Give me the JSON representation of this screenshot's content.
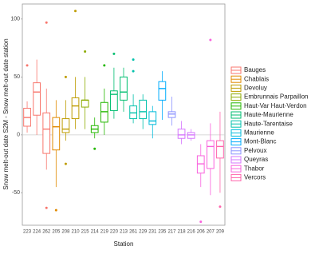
{
  "chart_data": {
    "type": "box",
    "y_label": "Snow melt-out date S2M - Snow melt-out date station",
    "x_label": "Station",
    "ylim": [
      -78,
      113
    ],
    "yticks": [
      -50,
      0,
      50,
      100
    ],
    "reference_line": 0,
    "legend": [
      {
        "name": "Bauges",
        "color": "#F8766D"
      },
      {
        "name": "Chablais",
        "color": "#E18A00"
      },
      {
        "name": "Devoluy",
        "color": "#BE9C00"
      },
      {
        "name": "Embrunnais Parpaillon",
        "color": "#8CAB00"
      },
      {
        "name": "Haut-Var Haut-Verdon",
        "color": "#24B700"
      },
      {
        "name": "Haute-Maurienne",
        "color": "#00BE70"
      },
      {
        "name": "Haute-Tarentaise",
        "color": "#00C1AB"
      },
      {
        "name": "Maurienne",
        "color": "#00BBDA"
      },
      {
        "name": "Mont-Blanc",
        "color": "#00ACFC"
      },
      {
        "name": "Pelvoux",
        "color": "#8B93FF"
      },
      {
        "name": "Queyras",
        "color": "#D575FE"
      },
      {
        "name": "Thabor",
        "color": "#F962DD"
      },
      {
        "name": "Vercors",
        "color": "#FF65AC"
      }
    ],
    "categories": [
      "223",
      "224",
      "262",
      "205",
      "208",
      "210",
      "215",
      "214",
      "219",
      "220",
      "213",
      "261",
      "229",
      "231",
      "235",
      "217",
      "218",
      "216",
      "206",
      "207",
      "209"
    ],
    "colors": [
      "#F8766D",
      "#F8766D",
      "#F8766D",
      "#E18A00",
      "#BE9C00",
      "#BE9C00",
      "#8CAB00",
      "#24B700",
      "#24B700",
      "#00BE70",
      "#00BE70",
      "#00C1AB",
      "#00C1AB",
      "#00BBDA",
      "#00ACFC",
      "#8B93FF",
      "#D575FE",
      "#D575FE",
      "#F962DD",
      "#F962DD",
      "#FF65AC"
    ],
    "boxes": [
      {
        "min": 2,
        "q1": 7.5,
        "median": 15,
        "q3": 23,
        "max": 29,
        "outliers": [
          60
        ]
      },
      {
        "min": 0,
        "q1": 17,
        "median": 37,
        "q3": 45,
        "max": 65,
        "outliers": []
      },
      {
        "min": -30,
        "q1": -16,
        "median": 5,
        "q3": 19,
        "max": 40,
        "outliers": [
          97,
          -63
        ]
      },
      {
        "min": -45,
        "q1": -13,
        "median": 7,
        "q3": 15,
        "max": 30,
        "outliers": [
          -65
        ]
      },
      {
        "min": -5,
        "q1": 2,
        "median": 5,
        "q3": 14,
        "max": 30,
        "outliers": [
          50,
          -25
        ]
      },
      {
        "min": 5,
        "q1": 14,
        "median": 25,
        "q3": 32,
        "max": 50,
        "outliers": [
          107
        ]
      },
      {
        "min": 5,
        "q1": 24,
        "median": 30,
        "q3": 30,
        "max": 50,
        "outliers": [
          72
        ]
      },
      {
        "min": -3,
        "q1": 2,
        "median": 5,
        "q3": 8,
        "max": 15,
        "outliers": [
          -12
        ]
      },
      {
        "min": 0,
        "q1": 11,
        "median": 20,
        "q3": 28,
        "max": 40,
        "outliers": [
          60
        ]
      },
      {
        "min": 14,
        "q1": 21,
        "median": 35,
        "q3": 38,
        "max": 58,
        "outliers": [
          70
        ]
      },
      {
        "min": 20,
        "q1": 30,
        "median": 37,
        "q3": 50,
        "max": 58,
        "outliers": []
      },
      {
        "min": 10,
        "q1": 14,
        "median": 19,
        "q3": 25,
        "max": 35,
        "outliers": [
          55,
          65
        ]
      },
      {
        "min": 5,
        "q1": 14,
        "median": 20,
        "q3": 30,
        "max": 35,
        "outliers": []
      },
      {
        "min": -3,
        "q1": 9,
        "median": 12,
        "q3": 20,
        "max": 25,
        "outliers": []
      },
      {
        "min": 13,
        "q1": 30,
        "median": 40,
        "q3": 46,
        "max": 55,
        "outliers": []
      },
      {
        "min": 8,
        "q1": 15,
        "median": 18,
        "q3": 20,
        "max": 33,
        "outliers": []
      },
      {
        "min": -8,
        "q1": -3,
        "median": 0,
        "q3": 5,
        "max": 12,
        "outliers": []
      },
      {
        "min": -5,
        "q1": -3,
        "median": 0,
        "q3": 2,
        "max": 5,
        "outliers": []
      },
      {
        "min": -45,
        "q1": -33,
        "median": -25,
        "q3": -18,
        "max": -8,
        "outliers": [
          -75
        ]
      },
      {
        "min": -52,
        "q1": -29,
        "median": -10,
        "q3": -5,
        "max": 10,
        "outliers": [
          82
        ]
      },
      {
        "min": -50,
        "q1": -20,
        "median": -10,
        "q3": -5,
        "max": 20,
        "outliers": [
          -62
        ]
      }
    ]
  }
}
